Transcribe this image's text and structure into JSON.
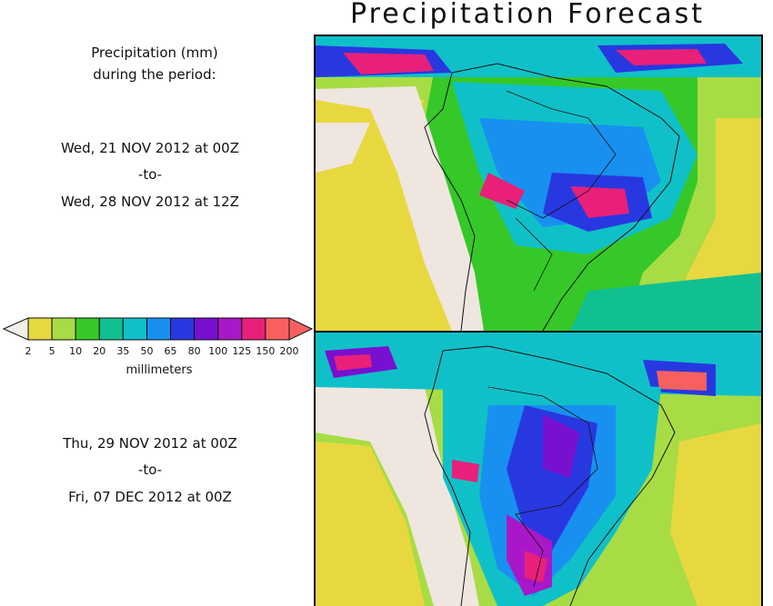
{
  "title": "Precipitation Forecast",
  "legend": {
    "heading_line1": "Precipitation (mm)",
    "heading_line2": "during the period:",
    "units": "millimeters",
    "ticks": [
      "2",
      "5",
      "10",
      "20",
      "35",
      "50",
      "65",
      "80",
      "100",
      "125",
      "150",
      "200"
    ],
    "colors": [
      "#f0f0e8",
      "#e8d840",
      "#a8dc44",
      "#36c828",
      "#10c090",
      "#10c0c8",
      "#1890f0",
      "#2838e0",
      "#7810d0",
      "#a818c8",
      "#e8207a",
      "#f86060",
      "#f04040"
    ]
  },
  "period_1": {
    "start": "Wed, 21 NOV 2012 at 00Z",
    "sep": "-to-",
    "end": "Wed, 28 NOV 2012 at 12Z"
  },
  "period_2": {
    "start": "Thu, 29 NOV 2012 at 00Z",
    "sep": "-to-",
    "end": "Fri, 07 DEC 2012 at 00Z"
  },
  "colors": {
    "land_dry": "#efe6e0",
    "ocean_low": "#e8d840",
    "coast": "#111111"
  }
}
